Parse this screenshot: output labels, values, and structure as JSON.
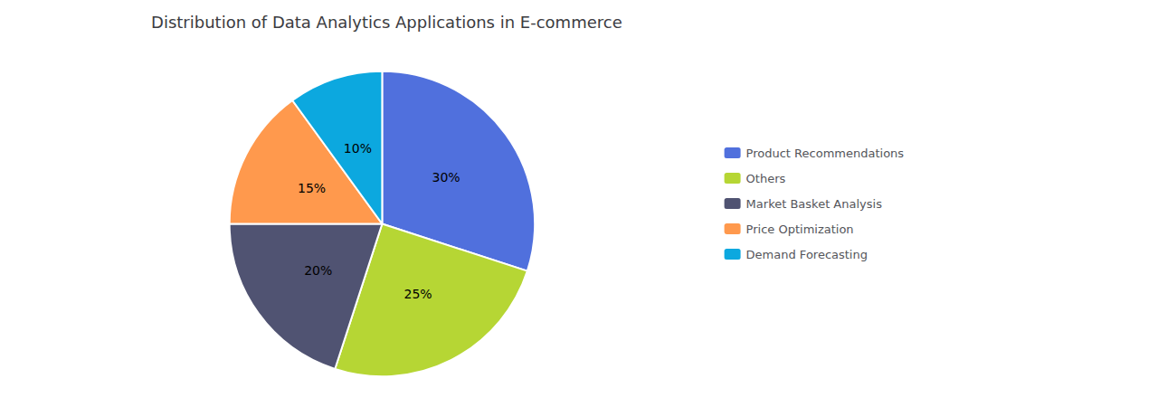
{
  "chart_data": {
    "type": "pie",
    "title": "Distribution of Data Analytics Applications in E-commerce",
    "categories": [
      "Product Recommendations",
      "Others",
      "Market Basket Analysis",
      "Price Optimization",
      "Demand Forecasting"
    ],
    "values": [
      30,
      25,
      20,
      15,
      10
    ],
    "value_labels": [
      "30%",
      "25%",
      "20%",
      "15%",
      "10%"
    ],
    "data_labels": true,
    "legend": "right"
  }
}
